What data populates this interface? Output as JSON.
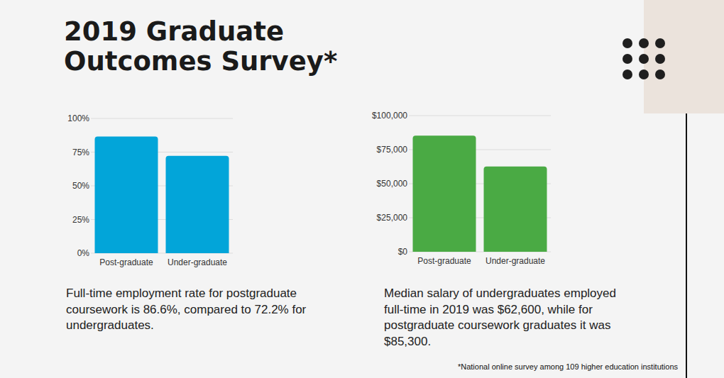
{
  "title": "2019 Graduate Outcomes Survey*",
  "footnote": "*National online survey among 109 higher education institutions",
  "chart_data": [
    {
      "type": "bar",
      "categories": [
        "Post-graduate",
        "Under-graduate"
      ],
      "values": [
        86.6,
        72.2
      ],
      "color": "#02a5d9",
      "ylim": [
        0,
        100
      ],
      "yticks": [
        {
          "value": 0,
          "label": "0%"
        },
        {
          "value": 25,
          "label": "25%"
        },
        {
          "value": 50,
          "label": "50%"
        },
        {
          "value": 75,
          "label": "75%"
        },
        {
          "value": 100,
          "label": "100%"
        }
      ],
      "grid": true,
      "annotations": [
        "Full-time employment rate for postgraduate coursework is 86.6%, compared to 72.2% for undergraduates."
      ]
    },
    {
      "type": "bar",
      "categories": [
        "Post-graduate",
        "Under-graduate"
      ],
      "values": [
        85300,
        62600
      ],
      "color": "#4aaa44",
      "ylim": [
        0,
        100000
      ],
      "yticks": [
        {
          "value": 0,
          "label": "$0"
        },
        {
          "value": 25000,
          "label": "$25,000"
        },
        {
          "value": 50000,
          "label": "$50,000"
        },
        {
          "value": 75000,
          "label": "$75,000"
        },
        {
          "value": 100000,
          "label": "$100,000"
        }
      ],
      "grid": true,
      "annotations": [
        "Median salary of undergraduates employed full-time in 2019 was $62,600, while for postgraduate coursework graduates it was $85,300."
      ]
    }
  ]
}
